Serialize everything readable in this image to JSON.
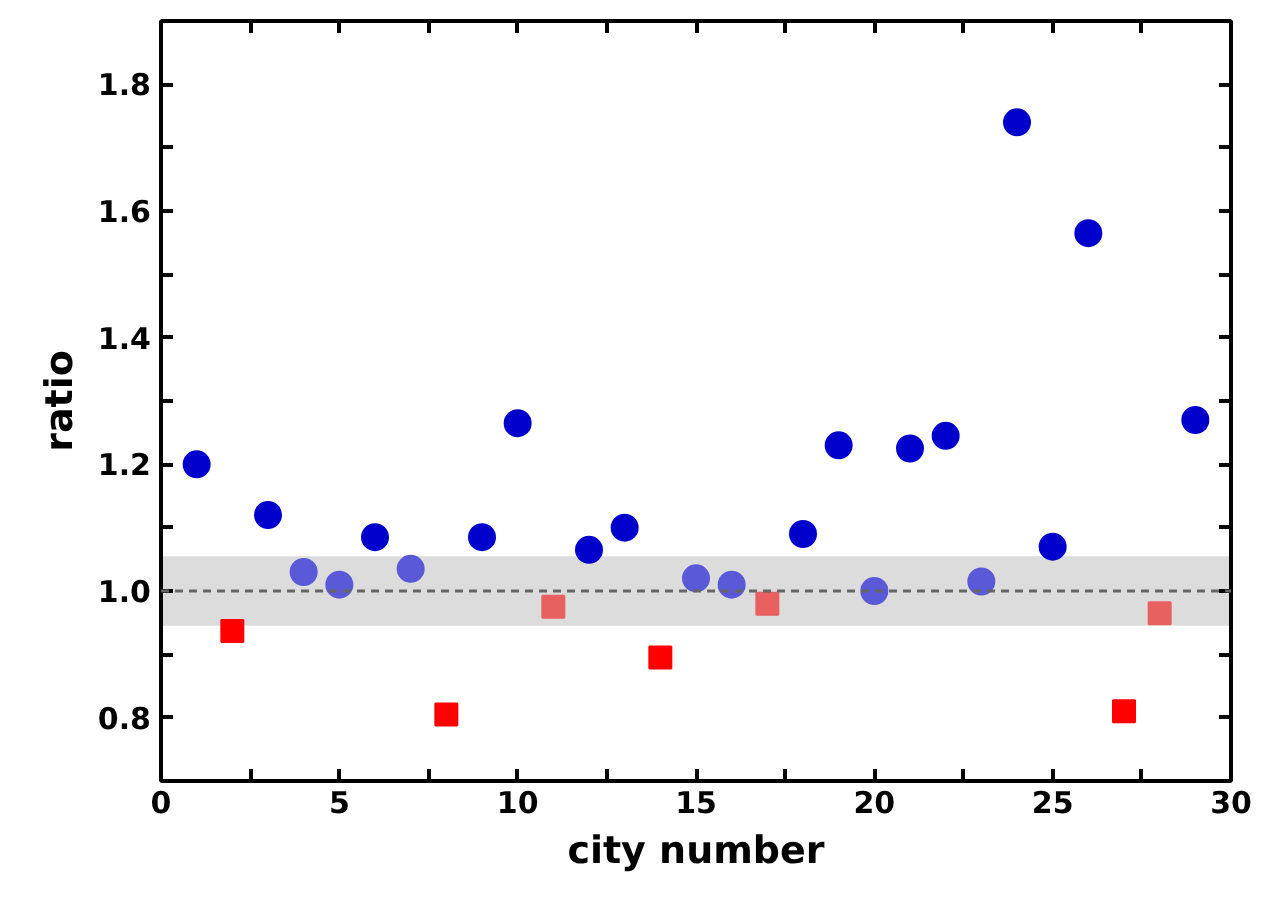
{
  "chart_data": {
    "type": "scatter",
    "xlabel": "city number",
    "ylabel": "ratio",
    "xlim": [
      0,
      30
    ],
    "xticks": [
      0,
      {
        "value": 2.5,
        "label": null
      },
      5,
      {
        "value": 7.5,
        "label": null
      },
      10,
      {
        "value": 12.5,
        "label": null
      },
      15,
      {
        "value": 17.5,
        "label": null
      },
      20,
      {
        "value": 22.5,
        "label": null
      },
      25,
      {
        "value": 27.5,
        "label": null
      },
      30
    ],
    "ylim": [
      0.7,
      1.9
    ],
    "yticks": [
      {
        "value": 0.7,
        "label": null
      },
      0.8,
      {
        "value": 0.9,
        "label": null
      },
      {
        "value": 1.0,
        "label": "1.0"
      },
      {
        "value": 1.1,
        "label": null
      },
      1.2,
      {
        "value": 1.3,
        "label": null
      },
      1.4,
      {
        "value": 1.5,
        "label": null
      },
      1.6,
      {
        "value": 1.7,
        "label": null
      },
      1.8
    ],
    "grid": false,
    "bands": [
      {
        "axis": "y",
        "from": 0.945,
        "to": 1.055,
        "color": "#dcdcdc"
      }
    ],
    "ref_lines": [
      {
        "axis": "y",
        "value": 1.0,
        "color": "#666666",
        "line_style": "dashed"
      }
    ],
    "series": [
      {
        "color": "#0000cc",
        "marker": "circle",
        "x": [
          1,
          3,
          6,
          9,
          10,
          12,
          13,
          18,
          19,
          21,
          22,
          24,
          25,
          26,
          29
        ],
        "values": [
          1.2,
          1.12,
          1.085,
          1.085,
          1.265,
          1.065,
          1.1,
          1.09,
          1.23,
          1.225,
          1.245,
          1.74,
          1.07,
          1.565,
          1.27
        ]
      },
      {
        "color": "#5a5ad8",
        "marker": "circle",
        "x": [
          4,
          5,
          7,
          15,
          16,
          20,
          23
        ],
        "values": [
          1.03,
          1.01,
          1.035,
          1.02,
          1.01,
          1.0,
          1.015
        ]
      },
      {
        "color": "#ff0000",
        "marker": "square",
        "x": [
          2,
          8,
          14,
          27
        ],
        "values": [
          0.937,
          0.805,
          0.895,
          0.81
        ]
      },
      {
        "color": "#e86060",
        "marker": "square",
        "x": [
          11,
          17,
          28
        ],
        "values": [
          0.975,
          0.98,
          0.965
        ]
      }
    ]
  }
}
